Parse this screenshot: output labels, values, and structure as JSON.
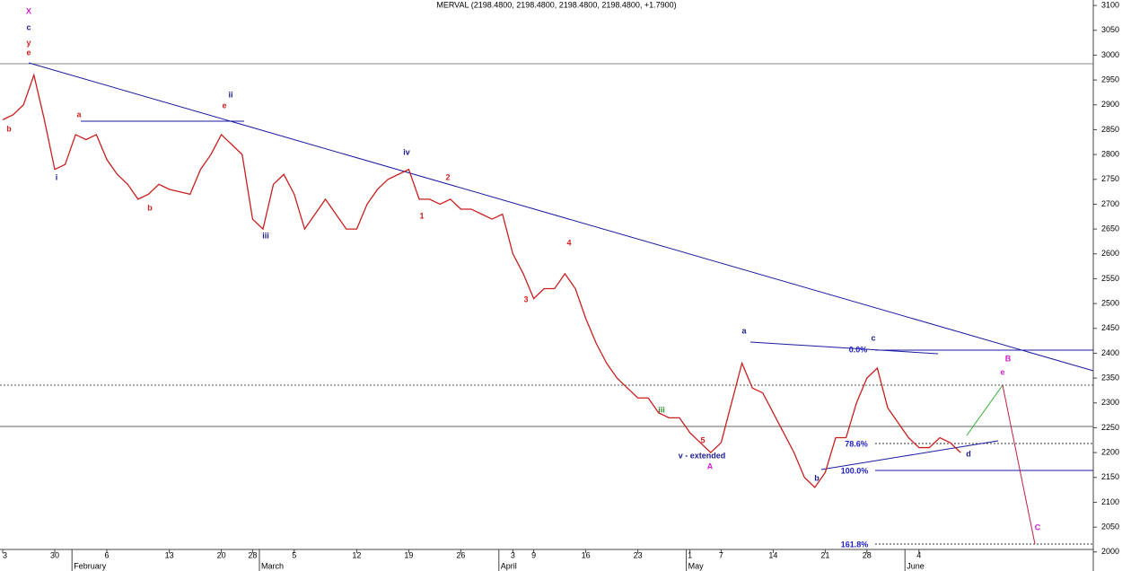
{
  "chart_data": {
    "type": "line",
    "title": "MERVAL (2198.4800, 2198.4800, 2198.4800, 2198.4800, +1.7900)",
    "color": "#c81e1e",
    "values": [
      2870,
      2880,
      2900,
      2960,
      2870,
      2770,
      2780,
      2840,
      2830,
      2840,
      2790,
      2760,
      2740,
      2710,
      2720,
      2740,
      2730,
      2725,
      2720,
      2770,
      2800,
      2840,
      2820,
      2800,
      2670,
      2650,
      2740,
      2760,
      2720,
      2650,
      2680,
      2710,
      2680,
      2650,
      2650,
      2700,
      2730,
      2750,
      2760,
      2770,
      2710,
      2710,
      2700,
      2710,
      2690,
      2690,
      2680,
      2670,
      2680,
      2600,
      2560,
      2510,
      2530,
      2530,
      2560,
      2530,
      2470,
      2420,
      2380,
      2350,
      2330,
      2310,
      2310,
      2280,
      2270,
      2270,
      2240,
      2220,
      2200,
      2220,
      2300,
      2380,
      2330,
      2320,
      2280,
      2240,
      2200,
      2150,
      2130,
      2160,
      2230,
      2230,
      2300,
      2350,
      2370,
      2290,
      2260,
      2230,
      2210,
      2210,
      2230,
      2220,
      2200
    ],
    "xticks": [
      {
        "value": 0,
        "label": "3"
      },
      {
        "value": 5,
        "label": "30"
      },
      {
        "value": 10,
        "label": "6"
      },
      {
        "value": 16,
        "label": "13"
      },
      {
        "value": 21,
        "label": "20"
      },
      {
        "value": 24,
        "label": "28"
      },
      {
        "value": 28,
        "label": "5"
      },
      {
        "value": 34,
        "label": "12"
      },
      {
        "value": 39,
        "label": "19"
      },
      {
        "value": 44,
        "label": "26"
      },
      {
        "value": 49,
        "label": "3"
      },
      {
        "value": 51,
        "label": "9"
      },
      {
        "value": 56,
        "label": "16"
      },
      {
        "value": 61,
        "label": "23"
      },
      {
        "value": 66,
        "label": "1"
      },
      {
        "value": 69,
        "label": "7"
      },
      {
        "value": 74,
        "label": "14"
      },
      {
        "value": 79,
        "label": "21"
      },
      {
        "value": 83,
        "label": "28"
      },
      {
        "value": 88,
        "label": "4"
      }
    ],
    "months": [
      {
        "value": 7,
        "label": "February"
      },
      {
        "value": 25,
        "label": "March"
      },
      {
        "value": 48,
        "label": "April"
      },
      {
        "value": 66,
        "label": "May"
      },
      {
        "value": 87,
        "label": "June"
      }
    ],
    "ylim": [
      1996,
      3111
    ],
    "yticks": [
      2000,
      2050,
      2100,
      2150,
      2200,
      2250,
      2300,
      2350,
      2400,
      2450,
      2500,
      2550,
      2600,
      2650,
      2700,
      2750,
      2800,
      2850,
      2900,
      2950,
      3000,
      3050,
      3100
    ],
    "annotations": [
      {
        "text": "X",
        "color": "#d020d0"
      },
      {
        "text": "c",
        "color": "#1a1a8c"
      },
      {
        "text": "y",
        "color": "#d02020"
      },
      {
        "text": "e",
        "color": "#d02020"
      },
      {
        "text": "i",
        "color": "#1a1a8c"
      },
      {
        "text": "b",
        "color": "#d02020"
      },
      {
        "text": "a",
        "color": "#d02020"
      },
      {
        "text": "e",
        "color": "#d02020"
      },
      {
        "text": "ii",
        "color": "#1a1a8c"
      },
      {
        "text": "iii",
        "color": "#1a1a8c"
      },
      {
        "text": "b",
        "color": "#d02020"
      },
      {
        "text": "iv",
        "color": "#1a1a8c"
      },
      {
        "text": "2",
        "color": "#d02020"
      },
      {
        "text": "1",
        "color": "#d02020"
      },
      {
        "text": "3",
        "color": "#d02020"
      },
      {
        "text": "4",
        "color": "#d02020"
      },
      {
        "text": "iii",
        "color": "#2a8a2a"
      },
      {
        "text": "5",
        "color": "#d02020"
      },
      {
        "text": "v - extended",
        "color": "#1a1a8c"
      },
      {
        "text": "A",
        "color": "#d020d0"
      },
      {
        "text": "a",
        "color": "#1a1a8c"
      },
      {
        "text": "b",
        "color": "#1a1a8c"
      },
      {
        "text": "c",
        "color": "#1a1a8c"
      },
      {
        "text": "0.0%",
        "color": "#2020c0"
      },
      {
        "text": "78.6%",
        "color": "#2020c0"
      },
      {
        "text": "100.0%",
        "color": "#2020c0"
      },
      {
        "text": "d",
        "color": "#1a1a8c"
      },
      {
        "text": "e",
        "color": "#d020d0"
      },
      {
        "text": "B",
        "color": "#d020d0"
      },
      {
        "text": "C",
        "color": "#d020d0"
      },
      {
        "text": "161.8%",
        "color": "#2020c0"
      }
    ]
  }
}
